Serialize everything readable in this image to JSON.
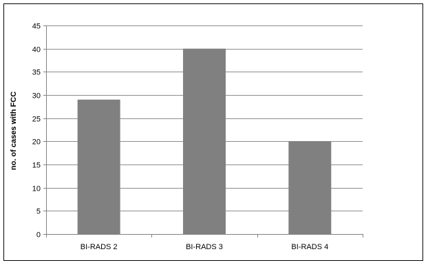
{
  "chart_data": {
    "type": "bar",
    "title": "",
    "xlabel": "",
    "ylabel": "no. of cases with FCC",
    "categories": [
      "BI-RADS 2",
      "BI-RADS 3",
      "BI-RADS 4"
    ],
    "values": [
      29,
      40,
      20
    ],
    "ylim": [
      0,
      45
    ],
    "yticks": [
      0,
      5,
      10,
      15,
      20,
      25,
      30,
      35,
      40,
      45
    ],
    "grid": "horizontal",
    "legend": "none",
    "colors": {
      "bar": "#808080",
      "grid": "#8c8c8c",
      "axis": "#808080"
    }
  }
}
